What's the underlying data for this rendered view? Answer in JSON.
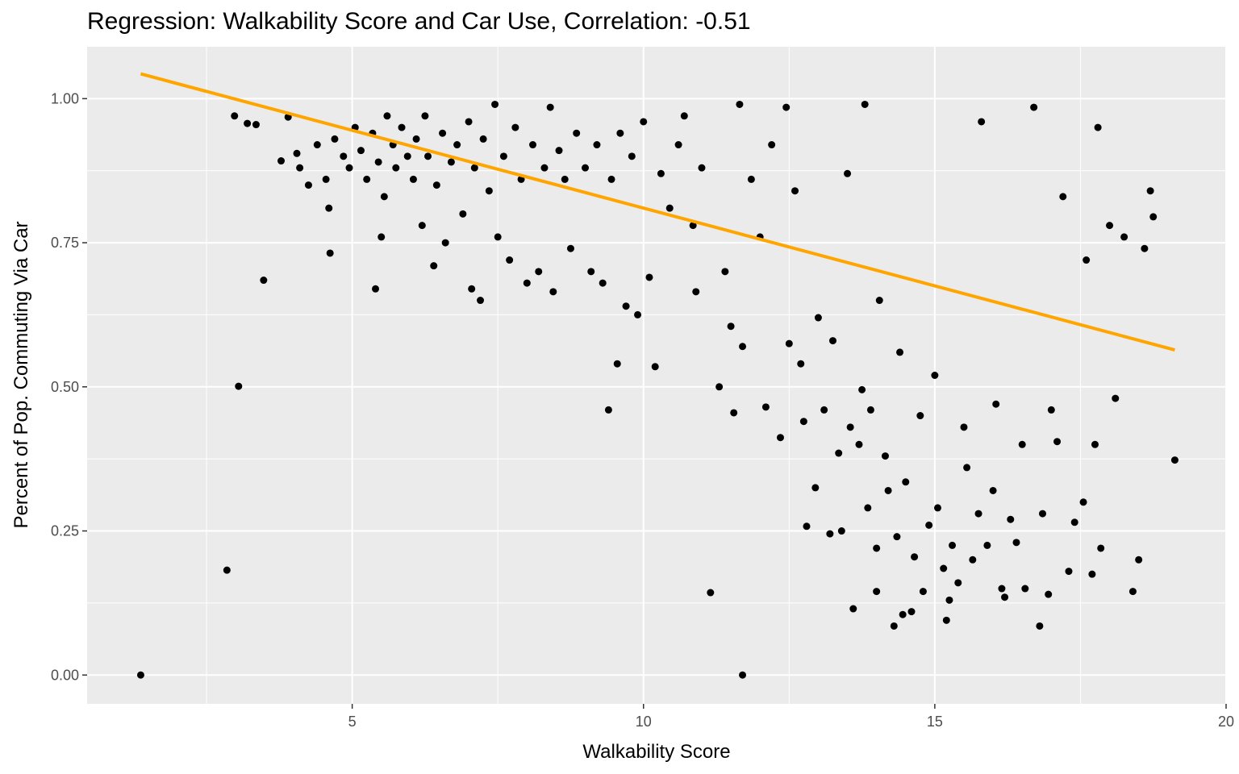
{
  "chart_data": {
    "type": "scatter",
    "title": "Regression: Walkability Score and Car Use, Correlation: -0.51",
    "xlabel": "Walkability Score",
    "ylabel": "Percent of Pop. Commuting Via Car",
    "xlim": [
      0.45,
      20.0
    ],
    "ylim": [
      -0.05,
      1.09
    ],
    "x_ticks": [
      5,
      10,
      15,
      20
    ],
    "x_tick_labels": [
      "5",
      "10",
      "15",
      "20"
    ],
    "y_ticks": [
      0.0,
      0.25,
      0.5,
      0.75,
      1.0
    ],
    "y_tick_labels": [
      "0.00",
      "0.25",
      "0.50",
      "0.75",
      "1.00"
    ],
    "grid": true,
    "colors": {
      "panel": "#ebebeb",
      "grid_major": "#ffffff",
      "points": "#000000",
      "regression_line": "#ffa500"
    },
    "regression_line": {
      "x": [
        1.37,
        19.12
      ],
      "y": [
        1.043,
        0.564
      ]
    },
    "points": [
      [
        1.37,
        0.0
      ],
      [
        2.85,
        0.182
      ],
      [
        2.98,
        0.97
      ],
      [
        3.05,
        0.501
      ],
      [
        3.2,
        0.957
      ],
      [
        3.35,
        0.955
      ],
      [
        3.48,
        0.685
      ],
      [
        3.78,
        0.892
      ],
      [
        3.9,
        0.968
      ],
      [
        4.05,
        0.905
      ],
      [
        4.1,
        0.88
      ],
      [
        4.25,
        0.85
      ],
      [
        4.4,
        0.92
      ],
      [
        4.55,
        0.86
      ],
      [
        4.6,
        0.81
      ],
      [
        4.62,
        0.732
      ],
      [
        4.7,
        0.93
      ],
      [
        4.85,
        0.9
      ],
      [
        4.95,
        0.88
      ],
      [
        5.05,
        0.95
      ],
      [
        5.15,
        0.91
      ],
      [
        5.25,
        0.86
      ],
      [
        5.35,
        0.94
      ],
      [
        5.4,
        0.67
      ],
      [
        5.45,
        0.89
      ],
      [
        5.5,
        0.76
      ],
      [
        5.55,
        0.83
      ],
      [
        5.6,
        0.97
      ],
      [
        5.7,
        0.92
      ],
      [
        5.75,
        0.88
      ],
      [
        5.85,
        0.95
      ],
      [
        5.95,
        0.9
      ],
      [
        6.05,
        0.86
      ],
      [
        6.1,
        0.93
      ],
      [
        6.2,
        0.78
      ],
      [
        6.25,
        0.97
      ],
      [
        6.3,
        0.9
      ],
      [
        6.4,
        0.71
      ],
      [
        6.45,
        0.85
      ],
      [
        6.55,
        0.94
      ],
      [
        6.6,
        0.75
      ],
      [
        6.7,
        0.89
      ],
      [
        6.8,
        0.92
      ],
      [
        6.9,
        0.8
      ],
      [
        7.0,
        0.96
      ],
      [
        7.05,
        0.67
      ],
      [
        7.1,
        0.88
      ],
      [
        7.2,
        0.65
      ],
      [
        7.25,
        0.93
      ],
      [
        7.35,
        0.84
      ],
      [
        7.45,
        0.99
      ],
      [
        7.5,
        0.76
      ],
      [
        7.6,
        0.9
      ],
      [
        7.7,
        0.72
      ],
      [
        7.8,
        0.95
      ],
      [
        7.9,
        0.86
      ],
      [
        8.0,
        0.68
      ],
      [
        8.1,
        0.92
      ],
      [
        8.2,
        0.7
      ],
      [
        8.3,
        0.88
      ],
      [
        8.4,
        0.985
      ],
      [
        8.45,
        0.665
      ],
      [
        8.55,
        0.91
      ],
      [
        8.65,
        0.86
      ],
      [
        8.75,
        0.74
      ],
      [
        8.85,
        0.94
      ],
      [
        9.0,
        0.88
      ],
      [
        9.1,
        0.7
      ],
      [
        9.2,
        0.92
      ],
      [
        9.3,
        0.68
      ],
      [
        9.4,
        0.46
      ],
      [
        9.45,
        0.86
      ],
      [
        9.55,
        0.54
      ],
      [
        9.6,
        0.94
      ],
      [
        9.7,
        0.64
      ],
      [
        9.8,
        0.9
      ],
      [
        9.9,
        0.625
      ],
      [
        10.0,
        0.96
      ],
      [
        10.1,
        0.69
      ],
      [
        10.2,
        0.535
      ],
      [
        10.3,
        0.87
      ],
      [
        10.45,
        0.81
      ],
      [
        10.6,
        0.92
      ],
      [
        10.7,
        0.97
      ],
      [
        10.85,
        0.78
      ],
      [
        10.9,
        0.665
      ],
      [
        11.0,
        0.88
      ],
      [
        11.15,
        0.143
      ],
      [
        11.3,
        0.5
      ],
      [
        11.4,
        0.7
      ],
      [
        11.5,
        0.605
      ],
      [
        11.55,
        0.455
      ],
      [
        11.65,
        0.99
      ],
      [
        11.7,
        0.57
      ],
      [
        11.7,
        0.0
      ],
      [
        11.85,
        0.86
      ],
      [
        12.0,
        0.76
      ],
      [
        12.1,
        0.465
      ],
      [
        12.2,
        0.92
      ],
      [
        12.35,
        0.412
      ],
      [
        12.45,
        0.985
      ],
      [
        12.5,
        0.575
      ],
      [
        12.6,
        0.84
      ],
      [
        12.7,
        0.54
      ],
      [
        12.75,
        0.44
      ],
      [
        12.8,
        0.258
      ],
      [
        12.95,
        0.325
      ],
      [
        13.0,
        0.62
      ],
      [
        13.1,
        0.46
      ],
      [
        13.2,
        0.245
      ],
      [
        13.25,
        0.58
      ],
      [
        13.35,
        0.385
      ],
      [
        13.4,
        0.25
      ],
      [
        13.5,
        0.87
      ],
      [
        13.55,
        0.43
      ],
      [
        13.6,
        0.115
      ],
      [
        13.7,
        0.4
      ],
      [
        13.75,
        0.495
      ],
      [
        13.8,
        0.99
      ],
      [
        13.85,
        0.29
      ],
      [
        13.9,
        0.46
      ],
      [
        14.0,
        0.145
      ],
      [
        14.0,
        0.22
      ],
      [
        14.05,
        0.65
      ],
      [
        14.15,
        0.38
      ],
      [
        14.2,
        0.32
      ],
      [
        14.3,
        0.085
      ],
      [
        14.35,
        0.24
      ],
      [
        14.4,
        0.56
      ],
      [
        14.45,
        0.105
      ],
      [
        14.5,
        0.335
      ],
      [
        14.6,
        0.11
      ],
      [
        14.65,
        0.205
      ],
      [
        14.75,
        0.45
      ],
      [
        14.8,
        0.145
      ],
      [
        14.9,
        0.26
      ],
      [
        15.0,
        0.52
      ],
      [
        15.05,
        0.29
      ],
      [
        15.15,
        0.185
      ],
      [
        15.2,
        0.095
      ],
      [
        15.25,
        0.13
      ],
      [
        15.3,
        0.225
      ],
      [
        15.4,
        0.16
      ],
      [
        15.5,
        0.43
      ],
      [
        15.55,
        0.36
      ],
      [
        15.65,
        0.2
      ],
      [
        15.75,
        0.28
      ],
      [
        15.8,
        0.96
      ],
      [
        15.9,
        0.225
      ],
      [
        16.0,
        0.32
      ],
      [
        16.05,
        0.47
      ],
      [
        16.15,
        0.15
      ],
      [
        16.2,
        0.135
      ],
      [
        16.3,
        0.27
      ],
      [
        16.4,
        0.23
      ],
      [
        16.5,
        0.4
      ],
      [
        16.55,
        0.15
      ],
      [
        16.7,
        0.985
      ],
      [
        16.8,
        0.085
      ],
      [
        16.85,
        0.28
      ],
      [
        16.95,
        0.14
      ],
      [
        17.0,
        0.46
      ],
      [
        17.1,
        0.405
      ],
      [
        17.2,
        0.83
      ],
      [
        17.3,
        0.18
      ],
      [
        17.4,
        0.265
      ],
      [
        17.55,
        0.3
      ],
      [
        17.6,
        0.72
      ],
      [
        17.7,
        0.175
      ],
      [
        17.75,
        0.4
      ],
      [
        17.8,
        0.95
      ],
      [
        17.85,
        0.22
      ],
      [
        18.0,
        0.78
      ],
      [
        18.1,
        0.48
      ],
      [
        18.25,
        0.76
      ],
      [
        18.4,
        0.145
      ],
      [
        18.5,
        0.2
      ],
      [
        18.6,
        0.74
      ],
      [
        18.7,
        0.84
      ],
      [
        18.75,
        0.795
      ],
      [
        19.12,
        0.373
      ]
    ]
  }
}
